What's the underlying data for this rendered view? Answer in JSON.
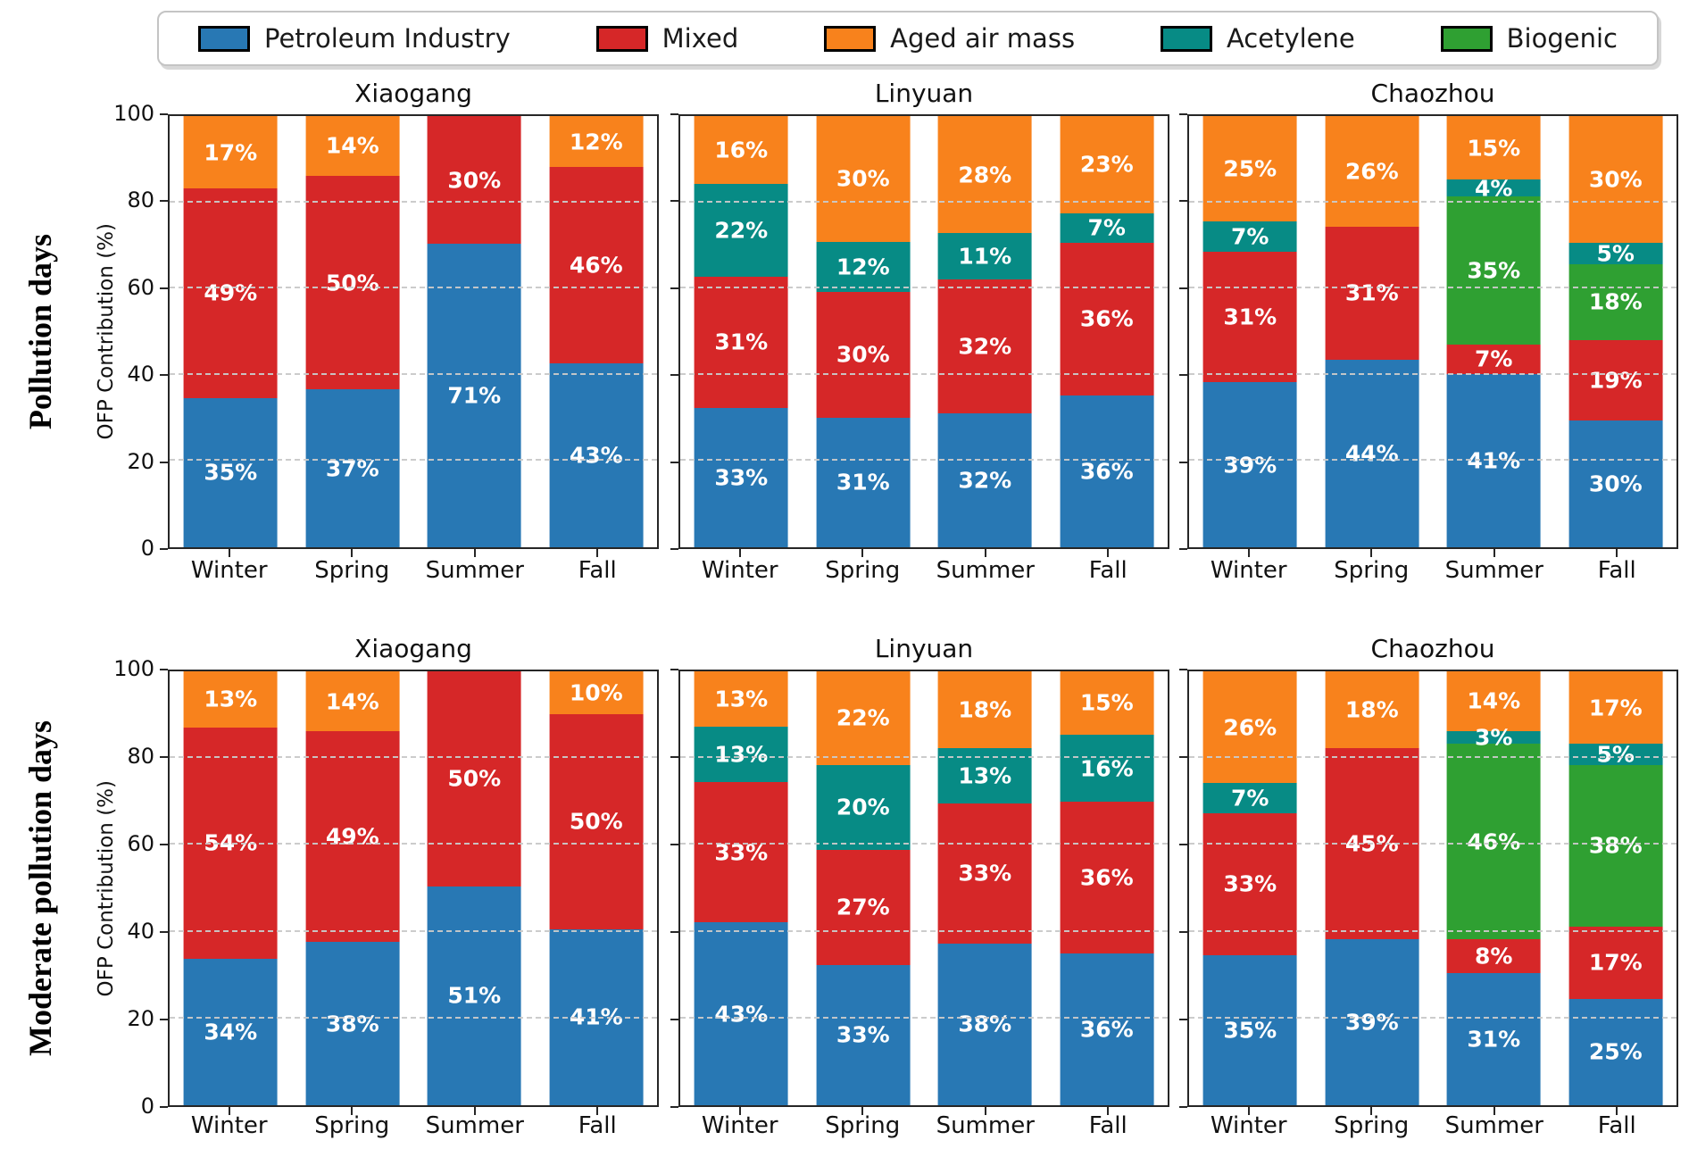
{
  "legend": {
    "items": [
      {
        "label": "Petroleum Industry",
        "color": "#2878b4"
      },
      {
        "label": "Mixed",
        "color": "#d62728"
      },
      {
        "label": "Aged air mass",
        "color": "#f8821c"
      },
      {
        "label": "Acetylene",
        "color": "#078b85"
      },
      {
        "label": "Biogenic",
        "color": "#2fa032"
      }
    ]
  },
  "chart_data": {
    "type": "bar",
    "stacked": true,
    "unit": "%",
    "ylabel": "OFP Contribution (%)",
    "ylim": [
      0,
      100
    ],
    "yticks": [
      0,
      20,
      40,
      60,
      80,
      100
    ],
    "grid": "dashed horizontal lines at 20,40,60,80 drawn over bars",
    "legend_position": "top center, horizontal",
    "categories": [
      "Winter",
      "Spring",
      "Summer",
      "Fall"
    ],
    "stack_order": [
      "petroleum",
      "mixed",
      "biogenic",
      "acetylene",
      "aged"
    ],
    "series_meta": {
      "petroleum": {
        "label": "Petroleum Industry",
        "color": "#2878b4"
      },
      "mixed": {
        "label": "Mixed",
        "color": "#d62728"
      },
      "biogenic": {
        "label": "Biogenic",
        "color": "#2fa032"
      },
      "acetylene": {
        "label": "Acetylene",
        "color": "#078b85"
      },
      "aged": {
        "label": "Aged air mass",
        "color": "#f8821c"
      }
    },
    "rows": [
      {
        "label": "Pollution days",
        "panels": [
          {
            "title": "Xiaogang",
            "values": {
              "petroleum": [
                35,
                37,
                71,
                43
              ],
              "mixed": [
                49,
                50,
                30,
                46
              ],
              "biogenic": [
                0,
                0,
                0,
                0
              ],
              "acetylene": [
                0,
                0,
                0,
                0
              ],
              "aged": [
                17,
                14,
                0,
                12
              ]
            }
          },
          {
            "title": "Linyuan",
            "values": {
              "petroleum": [
                33,
                31,
                32,
                36
              ],
              "mixed": [
                31,
                30,
                32,
                36
              ],
              "biogenic": [
                0,
                0,
                0,
                0
              ],
              "acetylene": [
                22,
                12,
                11,
                7
              ],
              "aged": [
                16,
                30,
                28,
                23
              ]
            }
          },
          {
            "title": "Chaozhou",
            "values": {
              "petroleum": [
                39,
                44,
                41,
                30
              ],
              "mixed": [
                31,
                31,
                7,
                19
              ],
              "biogenic": [
                0,
                0,
                35,
                18
              ],
              "acetylene": [
                7,
                0,
                4,
                5
              ],
              "aged": [
                25,
                26,
                15,
                30
              ]
            }
          }
        ]
      },
      {
        "label": "Moderate pollution days",
        "panels": [
          {
            "title": "Xiaogang",
            "values": {
              "petroleum": [
                34,
                38,
                51,
                41
              ],
              "mixed": [
                54,
                49,
                50,
                50
              ],
              "biogenic": [
                0,
                0,
                0,
                0
              ],
              "acetylene": [
                0,
                0,
                0,
                0
              ],
              "aged": [
                13,
                14,
                0,
                10
              ]
            }
          },
          {
            "title": "Linyuan",
            "values": {
              "petroleum": [
                43,
                33,
                38,
                36
              ],
              "mixed": [
                33,
                27,
                33,
                36
              ],
              "biogenic": [
                0,
                0,
                0,
                0
              ],
              "acetylene": [
                13,
                20,
                13,
                16
              ],
              "aged": [
                13,
                22,
                18,
                15
              ]
            }
          },
          {
            "title": "Chaozhou",
            "values": {
              "petroleum": [
                35,
                39,
                31,
                25
              ],
              "mixed": [
                33,
                45,
                8,
                17
              ],
              "biogenic": [
                0,
                0,
                46,
                38
              ],
              "acetylene": [
                7,
                0,
                3,
                5
              ],
              "aged": [
                26,
                18,
                14,
                17
              ]
            }
          }
        ]
      }
    ]
  }
}
